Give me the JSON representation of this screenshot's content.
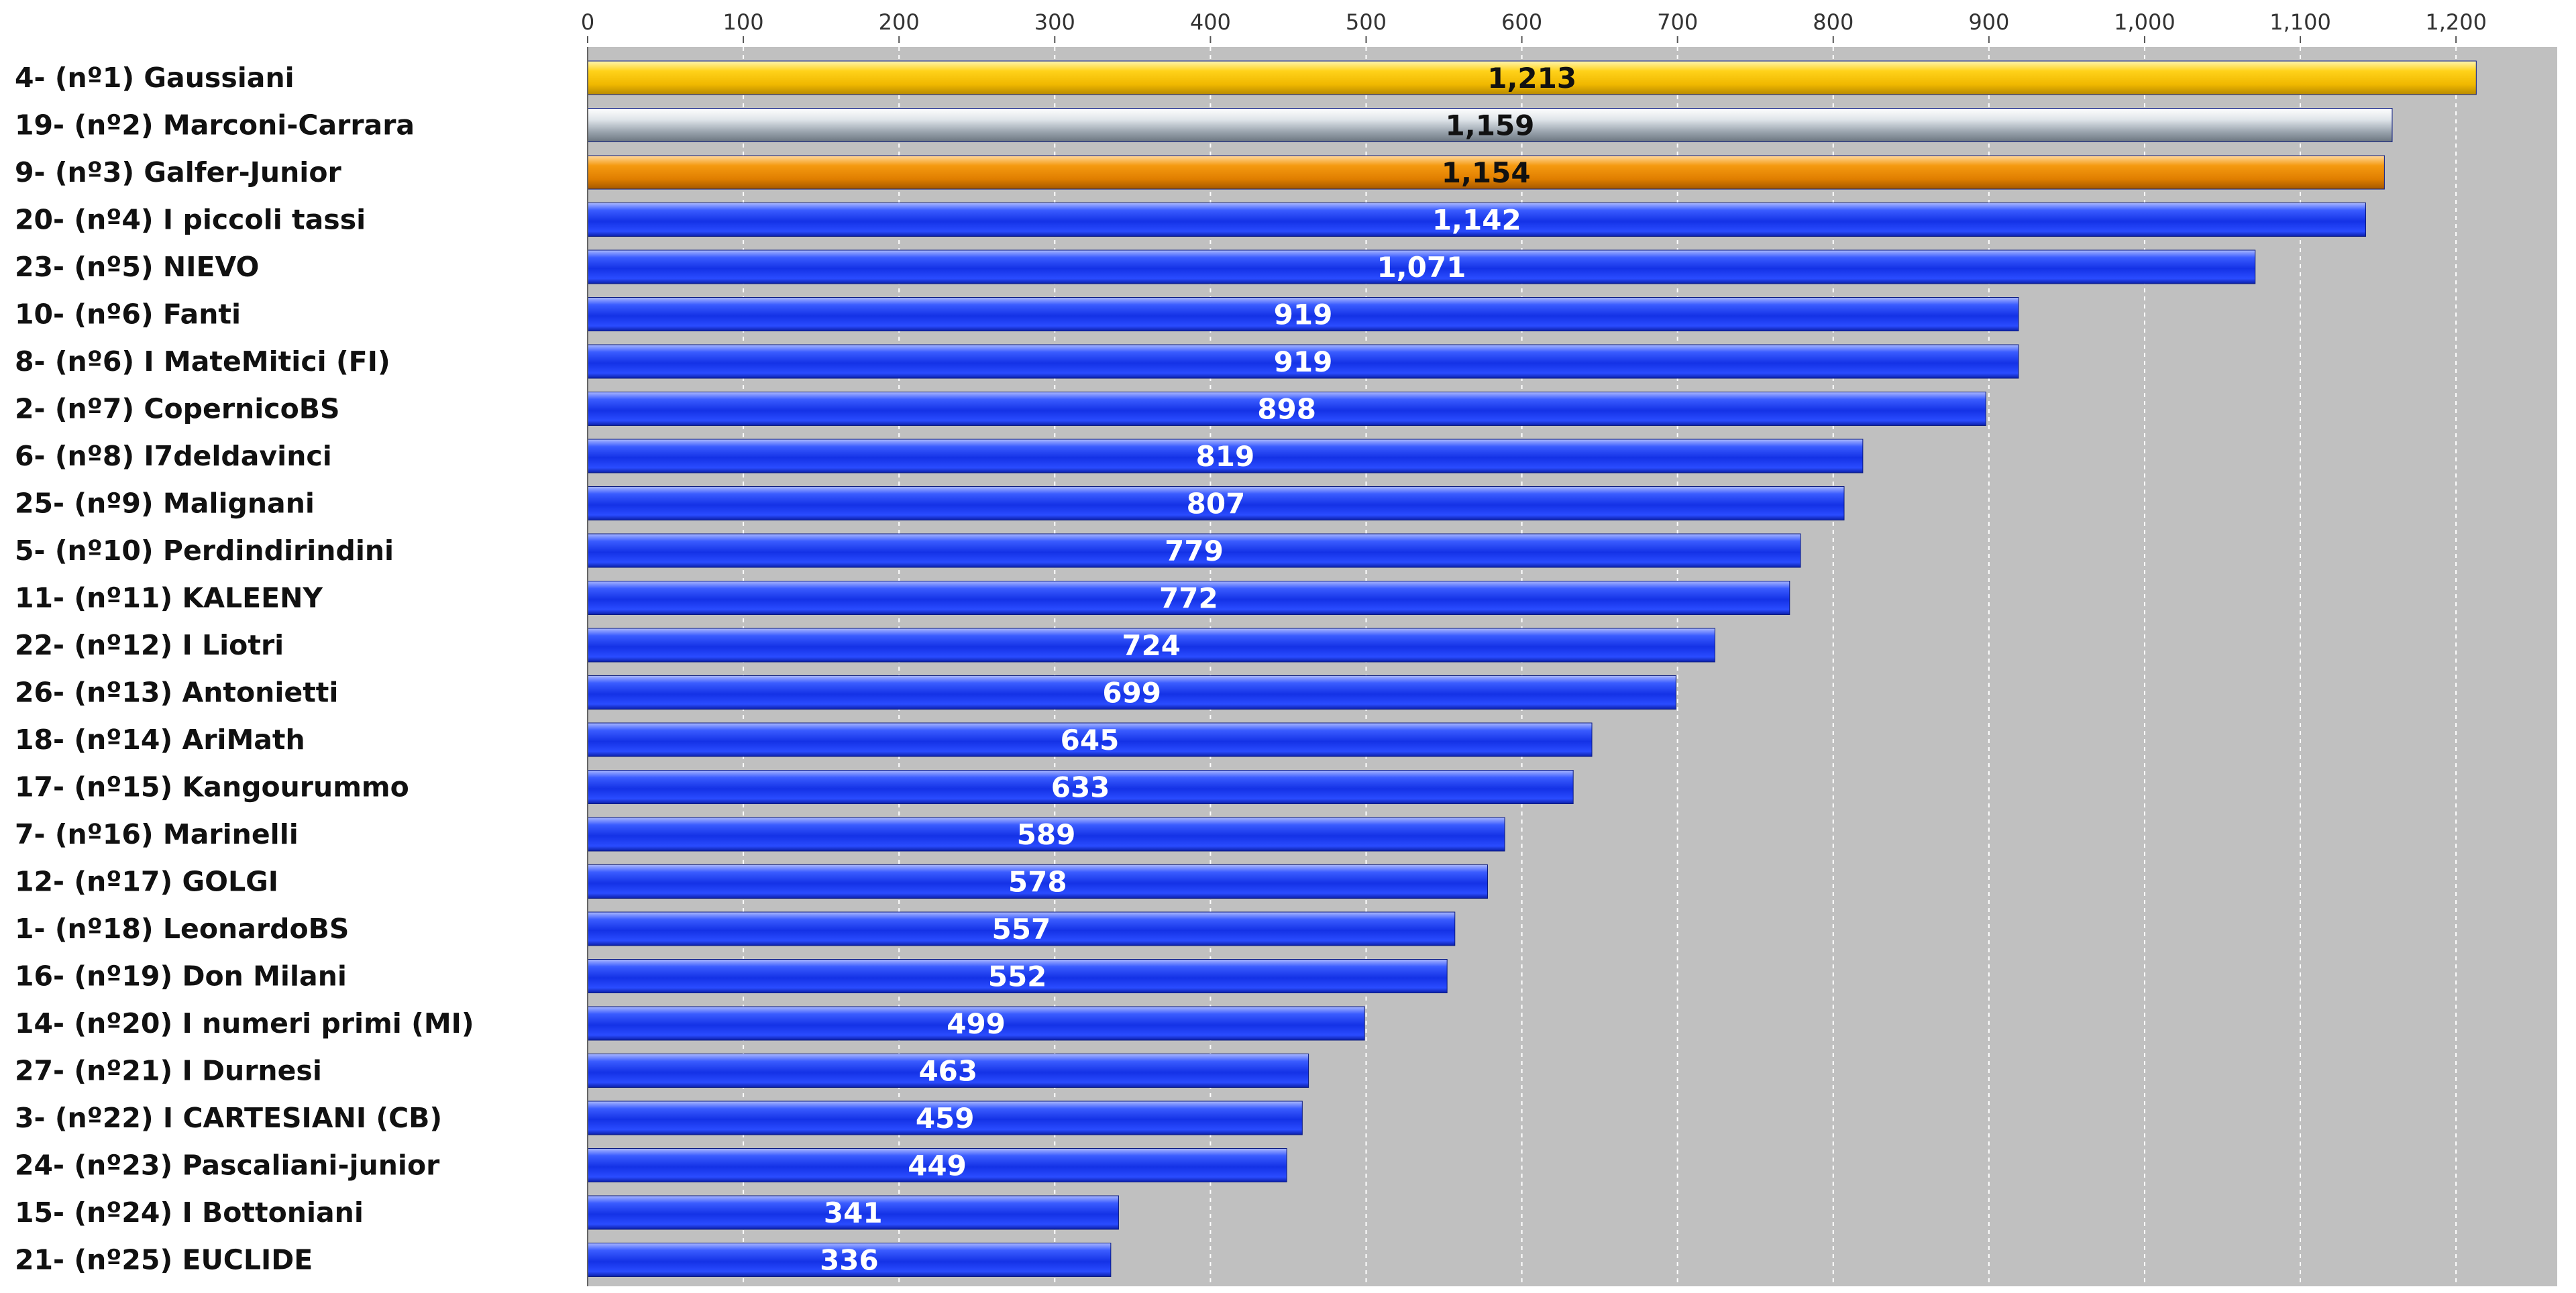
{
  "chart_data": {
    "type": "bar",
    "orientation": "horizontal",
    "title": "",
    "xlabel": "",
    "ylabel": "",
    "xlim": [
      0,
      1265
    ],
    "x_ticks": [
      0,
      100,
      200,
      300,
      400,
      500,
      600,
      700,
      800,
      900,
      1000,
      1100,
      1200
    ],
    "x_tick_labels": [
      "0",
      "100",
      "200",
      "300",
      "400",
      "500",
      "600",
      "700",
      "800",
      "900",
      "1,000",
      "1,100",
      "1,200"
    ],
    "grid": true,
    "plot_background": "#c0c0c0",
    "categories": [
      "4- (nº1) Gaussiani",
      "19- (nº2) Marconi-Carrara",
      "9- (nº3) Galfer-Junior",
      "20- (nº4) I piccoli tassi",
      "23- (nº5) NIEVO",
      "10- (nº6) Fanti",
      "8- (nº6) I MateMitici (FI)",
      "2- (nº7) CopernicoBS",
      "6- (nº8) I7deldavinci",
      "25- (nº9) Malignani",
      "5- (nº10) Perdindirindini",
      "11- (nº11) KALEENY",
      "22- (nº12) I Liotri",
      "26- (nº13) Antonietti",
      "18- (nº14) AriMath",
      "17- (nº15) Kangourummo",
      "7- (nº16) Marinelli",
      "12- (nº17) GOLGI",
      "1- (nº18) LeonardoBS",
      "16- (nº19) Don Milani",
      "14- (nº20) I numeri primi (MI)",
      "27- (nº21) I Durnesi",
      "3- (nº22) I CARTESIANI (CB)",
      "24- (nº23) Pascaliani-junior",
      "15- (nº24) I Bottoniani",
      "21- (nº25) EUCLIDE"
    ],
    "values": [
      1213,
      1159,
      1154,
      1142,
      1071,
      919,
      919,
      898,
      819,
      807,
      779,
      772,
      724,
      699,
      645,
      633,
      589,
      578,
      557,
      552,
      499,
      463,
      459,
      449,
      341,
      336
    ],
    "value_labels": [
      "1,213",
      "1,159",
      "1,154",
      "1,142",
      "1,071",
      "919",
      "919",
      "898",
      "819",
      "807",
      "779",
      "772",
      "724",
      "699",
      "645",
      "633",
      "589",
      "578",
      "557",
      "552",
      "499",
      "463",
      "459",
      "449",
      "341",
      "336"
    ],
    "bar_styles": [
      "gold",
      "silver",
      "bronze",
      "blue",
      "blue",
      "blue",
      "blue",
      "blue",
      "blue",
      "blue",
      "blue",
      "blue",
      "blue",
      "blue",
      "blue",
      "blue",
      "blue",
      "blue",
      "blue",
      "blue",
      "blue",
      "blue",
      "blue",
      "blue",
      "blue",
      "blue"
    ],
    "colors": {
      "gold": "#f2c200",
      "silver": "#b8c0c8",
      "bronze": "#ee8a00",
      "blue": "#1a3cf0",
      "label_dark": "#111111",
      "label_light": "#ffffff"
    }
  }
}
